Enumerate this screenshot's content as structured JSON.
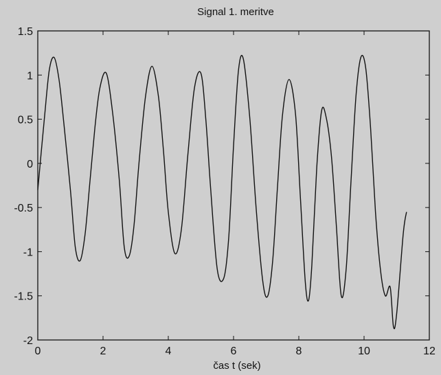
{
  "chart_data": {
    "type": "line",
    "title": "Signal 1. meritve",
    "xlabel": "čas t (sek)",
    "ylabel": "",
    "xlim": [
      0,
      12
    ],
    "ylim": [
      -2,
      1.5
    ],
    "xticks": [
      "0",
      "2",
      "4",
      "6",
      "8",
      "10",
      "12"
    ],
    "yticks": [
      "1.5",
      "1",
      "0.5",
      "0",
      "-0.5",
      "-1",
      "-1.5",
      "-2"
    ],
    "grid": false,
    "series": [
      {
        "color": "#111111",
        "x": [
          0.0,
          0.2,
          0.35,
          0.5,
          0.65,
          0.8,
          1.0,
          1.15,
          1.3,
          1.45,
          1.6,
          1.75,
          1.9,
          2.1,
          2.3,
          2.5,
          2.65,
          2.8,
          2.95,
          3.1,
          3.3,
          3.5,
          3.7,
          3.85,
          4.0,
          4.2,
          4.4,
          4.6,
          4.8,
          5.0,
          5.15,
          5.3,
          5.5,
          5.7,
          5.85,
          6.0,
          6.15,
          6.3,
          6.5,
          6.7,
          6.9,
          7.05,
          7.2,
          7.35,
          7.5,
          7.7,
          7.9,
          8.05,
          8.2,
          8.3,
          8.4,
          8.55,
          8.7,
          8.85,
          9.0,
          9.15,
          9.3,
          9.45,
          9.6,
          9.75,
          9.9,
          10.05,
          10.2,
          10.35,
          10.5,
          10.65,
          10.8,
          10.9,
          11.0,
          11.2,
          11.3
        ],
        "y": [
          -0.3,
          0.5,
          1.05,
          1.2,
          0.95,
          0.45,
          -0.3,
          -0.95,
          -1.1,
          -0.8,
          -0.2,
          0.4,
          0.85,
          1.02,
          0.55,
          -0.2,
          -0.95,
          -1.05,
          -0.7,
          0.0,
          0.75,
          1.1,
          0.75,
          0.15,
          -0.55,
          -1.02,
          -0.75,
          0.1,
          0.85,
          1.02,
          0.5,
          -0.3,
          -1.2,
          -1.3,
          -0.85,
          0.2,
          1.05,
          1.18,
          0.5,
          -0.55,
          -1.35,
          -1.5,
          -1.1,
          -0.25,
          0.55,
          0.95,
          0.55,
          -0.4,
          -1.35,
          -1.55,
          -1.15,
          -0.05,
          0.6,
          0.5,
          0.08,
          -0.7,
          -1.5,
          -1.2,
          -0.2,
          0.75,
          1.2,
          1.08,
          0.4,
          -0.55,
          -1.2,
          -1.5,
          -1.4,
          -1.85,
          -1.7,
          -0.8,
          -0.55
        ]
      }
    ]
  }
}
